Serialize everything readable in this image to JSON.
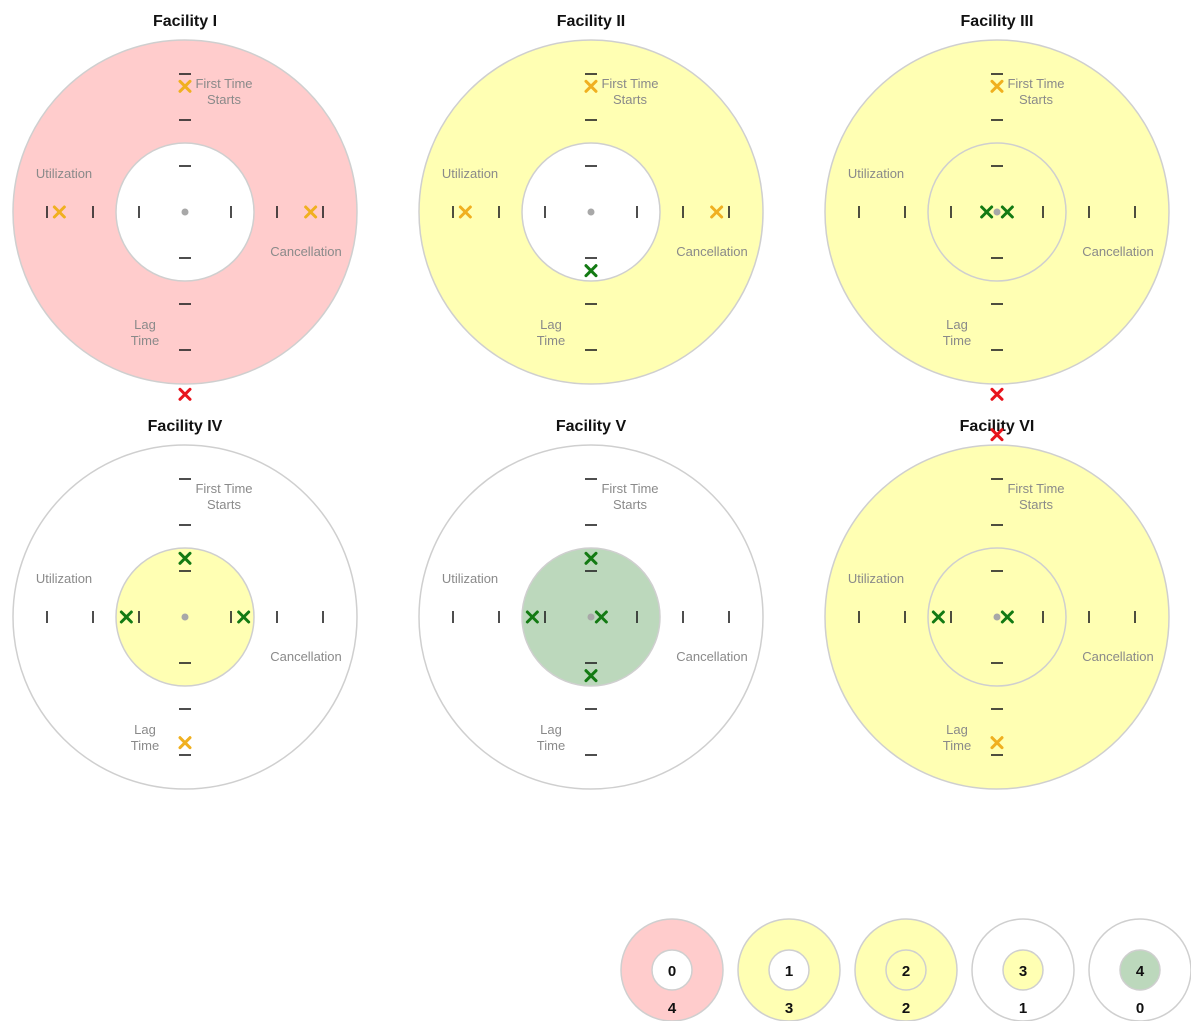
{
  "colors": {
    "red_fill": "#ffcccc",
    "yellow_fill": "#ffffb3",
    "green_fill": "#bcd8bc",
    "white_fill": "#ffffff",
    "ring_stroke": "#cfcfcf",
    "tick": "#222222",
    "mark_red": "#e8141c",
    "mark_orange": "#f0b020",
    "mark_green": "#137a13",
    "center_dot": "#a8a8a8"
  },
  "axis_labels": {
    "top": [
      "First Time",
      "Starts"
    ],
    "left": "Utilization",
    "right": "Cancellation",
    "bottom": [
      "Lag",
      "Time"
    ]
  },
  "chart_data": {
    "type": "radial-scorecard",
    "note": "Each facility shown as a target. Marks placed per metric (top = First Time Starts, left = Utilization, right = Cancellation, bottom = Lag Time). Position: 0 = center, 1 = inner ring boundary, 2 = outer ring boundary.",
    "facilities": [
      {
        "name": "Facility I",
        "outer_fill": "red",
        "inner_fill": "white",
        "marks": [
          {
            "metric": "First Time Starts",
            "position": 1.55,
            "color": "orange"
          },
          {
            "metric": "Utilization",
            "position": 1.55,
            "color": "orange"
          },
          {
            "metric": "Cancellation",
            "position": 1.55,
            "color": "orange"
          },
          {
            "metric": "Lag Time",
            "position": 2.1,
            "color": "red"
          }
        ]
      },
      {
        "name": "Facility II",
        "outer_fill": "yellow",
        "inner_fill": "white",
        "marks": [
          {
            "metric": "First Time Starts",
            "position": 1.55,
            "color": "orange"
          },
          {
            "metric": "Utilization",
            "position": 1.55,
            "color": "orange"
          },
          {
            "metric": "Cancellation",
            "position": 1.55,
            "color": "orange"
          },
          {
            "metric": "Lag Time",
            "position": 0.85,
            "color": "green"
          }
        ]
      },
      {
        "name": "Facility III",
        "outer_fill": "yellow",
        "inner_fill": "yellow",
        "marks": [
          {
            "metric": "First Time Starts",
            "position": 1.55,
            "color": "orange"
          },
          {
            "metric": "Utilization",
            "position": 0.15,
            "color": "green"
          },
          {
            "metric": "Cancellation",
            "position": 0.15,
            "color": "green"
          },
          {
            "metric": "Lag Time",
            "position": 2.1,
            "color": "red"
          }
        ]
      },
      {
        "name": "Facility IV",
        "outer_fill": "white",
        "inner_fill": "yellow",
        "marks": [
          {
            "metric": "First Time Starts",
            "position": 0.85,
            "color": "green"
          },
          {
            "metric": "Utilization",
            "position": 0.85,
            "color": "green"
          },
          {
            "metric": "Cancellation",
            "position": 0.85,
            "color": "green"
          },
          {
            "metric": "Lag Time",
            "position": 1.55,
            "color": "orange"
          }
        ]
      },
      {
        "name": "Facility V",
        "outer_fill": "white",
        "inner_fill": "green",
        "marks": [
          {
            "metric": "First Time Starts",
            "position": 0.85,
            "color": "green"
          },
          {
            "metric": "Utilization",
            "position": 0.85,
            "color": "green"
          },
          {
            "metric": "Cancellation",
            "position": 0.15,
            "color": "green"
          },
          {
            "metric": "Lag Time",
            "position": 0.85,
            "color": "green"
          }
        ]
      },
      {
        "name": "Facility VI",
        "outer_fill": "yellow",
        "inner_fill": "yellow",
        "marks": [
          {
            "metric": "First Time Starts",
            "position": 2.1,
            "color": "red"
          },
          {
            "metric": "Utilization",
            "position": 0.85,
            "color": "green"
          },
          {
            "metric": "Cancellation",
            "position": 0.15,
            "color": "green"
          },
          {
            "metric": "Lag Time",
            "position": 1.55,
            "color": "orange"
          }
        ]
      }
    ],
    "legend": [
      {
        "inner": "0",
        "outer": "4",
        "outer_fill": "red",
        "inner_fill": "white"
      },
      {
        "inner": "1",
        "outer": "3",
        "outer_fill": "yellow",
        "inner_fill": "white"
      },
      {
        "inner": "2",
        "outer": "2",
        "outer_fill": "yellow",
        "inner_fill": "yellow"
      },
      {
        "inner": "3",
        "outer": "1",
        "outer_fill": "white",
        "inner_fill": "yellow"
      },
      {
        "inner": "4",
        "outer": "0",
        "outer_fill": "white",
        "inner_fill": "green"
      }
    ]
  }
}
